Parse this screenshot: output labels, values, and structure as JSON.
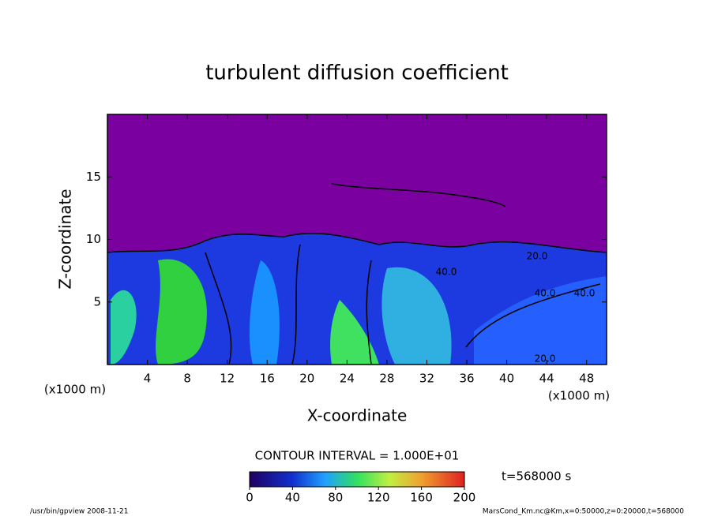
{
  "chart_data": {
    "type": "contour",
    "title": "turbulent diffusion coefficient",
    "x_label": "X-coordinate",
    "y_label": "Z-coordinate",
    "x_unit": "(x1000 m)",
    "xlim": [
      0,
      50
    ],
    "xticks": [
      4,
      8,
      12,
      16,
      20,
      24,
      28,
      32,
      36,
      40,
      44,
      48
    ],
    "ylim": [
      0,
      20
    ],
    "yticks": [
      5,
      10,
      15
    ],
    "contour_labels": [
      "40.0",
      "20.0",
      "40.0",
      "40.0",
      "20.0"
    ],
    "contour_interval_text": "CONTOUR INTERVAL = 1.000E+01",
    "colorbar": {
      "clim": [
        0,
        200
      ],
      "ticks": [
        0,
        40,
        80,
        120,
        160,
        200
      ]
    },
    "time_text": "t=568000 s",
    "footer_left": "/usr/bin/gpview  2008-11-21",
    "footer_right": "MarsCond_Km.nc@Km,x=0:50000,z=0:20000,t=568000"
  }
}
